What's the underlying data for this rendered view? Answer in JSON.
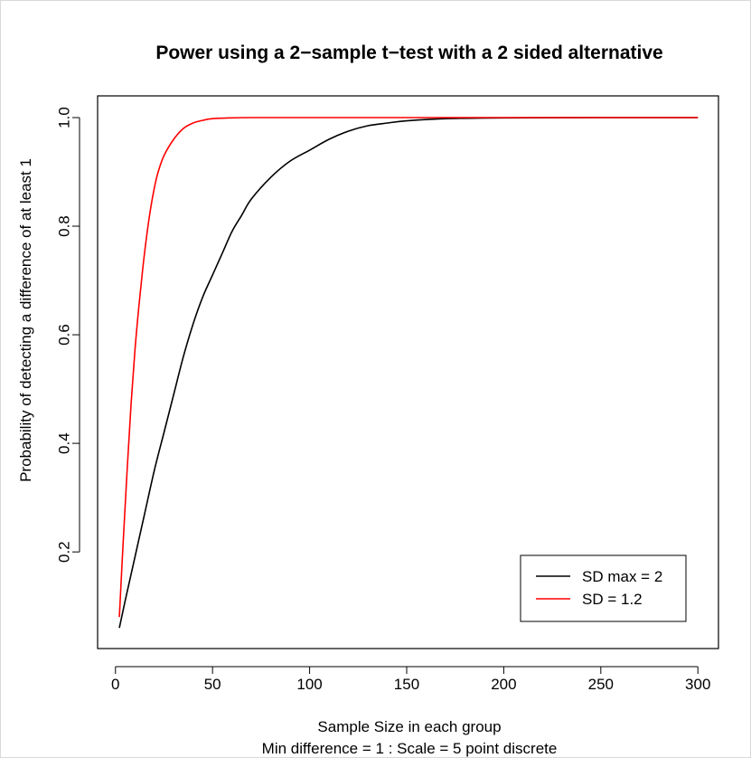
{
  "chart_data": {
    "type": "line",
    "title": "Power using a 2−sample t−test with a 2 sided alternative",
    "xlabel": "Sample Size in each group",
    "xlabel_line2": "Min difference = 1 : Scale = 5 point discrete",
    "ylabel": "Probability of detecting a difference of at least 1",
    "xlim": [
      -9.2,
      310.6
    ],
    "ylim": [
      0.022,
      1.04
    ],
    "x_ticks": [
      0,
      50,
      100,
      150,
      200,
      250,
      300
    ],
    "y_ticks": [
      0.2,
      0.4,
      0.6,
      0.8,
      1.0
    ],
    "y_tick_labels": [
      "0.2",
      "0.4",
      "0.6",
      "0.8",
      "1.0"
    ],
    "grid": false,
    "legend": {
      "position": "bottom-right"
    },
    "series": [
      {
        "name": "SD max = 2",
        "color": "#000000",
        "x": [
          2,
          5,
          10,
          15,
          20,
          25,
          30,
          35,
          40,
          45,
          50,
          55,
          60,
          65,
          70,
          80,
          90,
          100,
          110,
          120,
          130,
          140,
          150,
          170,
          200,
          250,
          300
        ],
        "y": [
          0.06,
          0.11,
          0.19,
          0.27,
          0.35,
          0.42,
          0.49,
          0.56,
          0.62,
          0.67,
          0.71,
          0.75,
          0.79,
          0.82,
          0.85,
          0.89,
          0.92,
          0.94,
          0.96,
          0.975,
          0.985,
          0.99,
          0.994,
          0.998,
          0.9995,
          1.0,
          1.0
        ]
      },
      {
        "name": "SD = 1.2",
        "color": "#ff0000",
        "x": [
          2,
          4,
          6,
          8,
          10,
          12,
          14,
          16,
          18,
          20,
          22,
          25,
          30,
          35,
          40,
          45,
          50,
          60,
          70,
          80,
          100,
          150,
          200,
          250,
          300
        ],
        "y": [
          0.08,
          0.22,
          0.35,
          0.47,
          0.57,
          0.65,
          0.72,
          0.78,
          0.83,
          0.87,
          0.9,
          0.93,
          0.96,
          0.98,
          0.99,
          0.995,
          0.998,
          0.9995,
          1.0,
          1.0,
          1.0,
          1.0,
          1.0,
          1.0,
          1.0
        ]
      }
    ]
  }
}
